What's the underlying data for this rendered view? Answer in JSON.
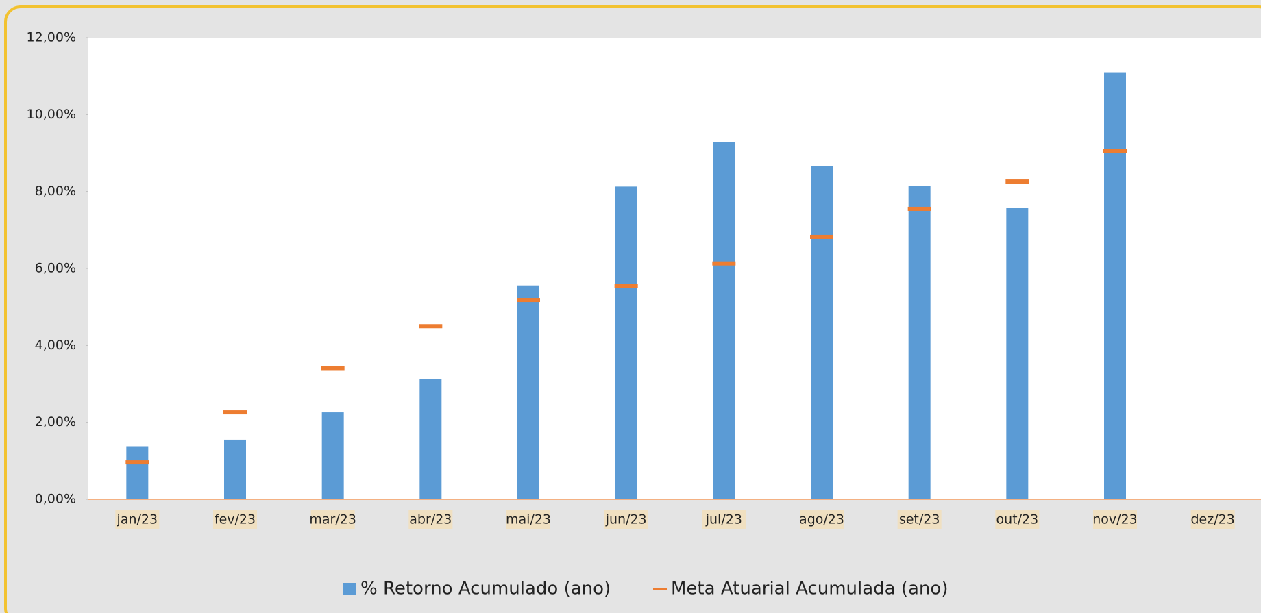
{
  "chart_data": {
    "type": "bar",
    "categories": [
      "jan/23",
      "fev/23",
      "mar/23",
      "abr/23",
      "mai/23",
      "jun/23",
      "jul/23",
      "ago/23",
      "set/23",
      "out/23",
      "nov/23",
      "dez/23"
    ],
    "series": [
      {
        "name": "% Retorno Acumulado (ano)",
        "color": "#5b9bd5",
        "values": [
          1.38,
          1.55,
          2.26,
          3.12,
          5.56,
          8.13,
          9.28,
          8.66,
          8.15,
          7.57,
          11.1,
          null
        ]
      },
      {
        "name": "Meta Atuarial Acumulada (ano)",
        "color": "#ed7d31",
        "values": [
          0.96,
          2.26,
          3.41,
          4.5,
          5.18,
          5.54,
          6.13,
          6.82,
          7.55,
          8.26,
          9.05,
          null
        ]
      }
    ],
    "ylim": [
      0,
      12
    ],
    "yticks": [
      {
        "value": 0,
        "label": "0,00%"
      },
      {
        "value": 2,
        "label": "2,00%"
      },
      {
        "value": 4,
        "label": "4,00%"
      },
      {
        "value": 6,
        "label": "6,00%"
      },
      {
        "value": 8,
        "label": "8,00%"
      },
      {
        "value": 10,
        "label": "10,00%"
      },
      {
        "value": 12,
        "label": "12,00%"
      }
    ],
    "legend": "bottom"
  }
}
